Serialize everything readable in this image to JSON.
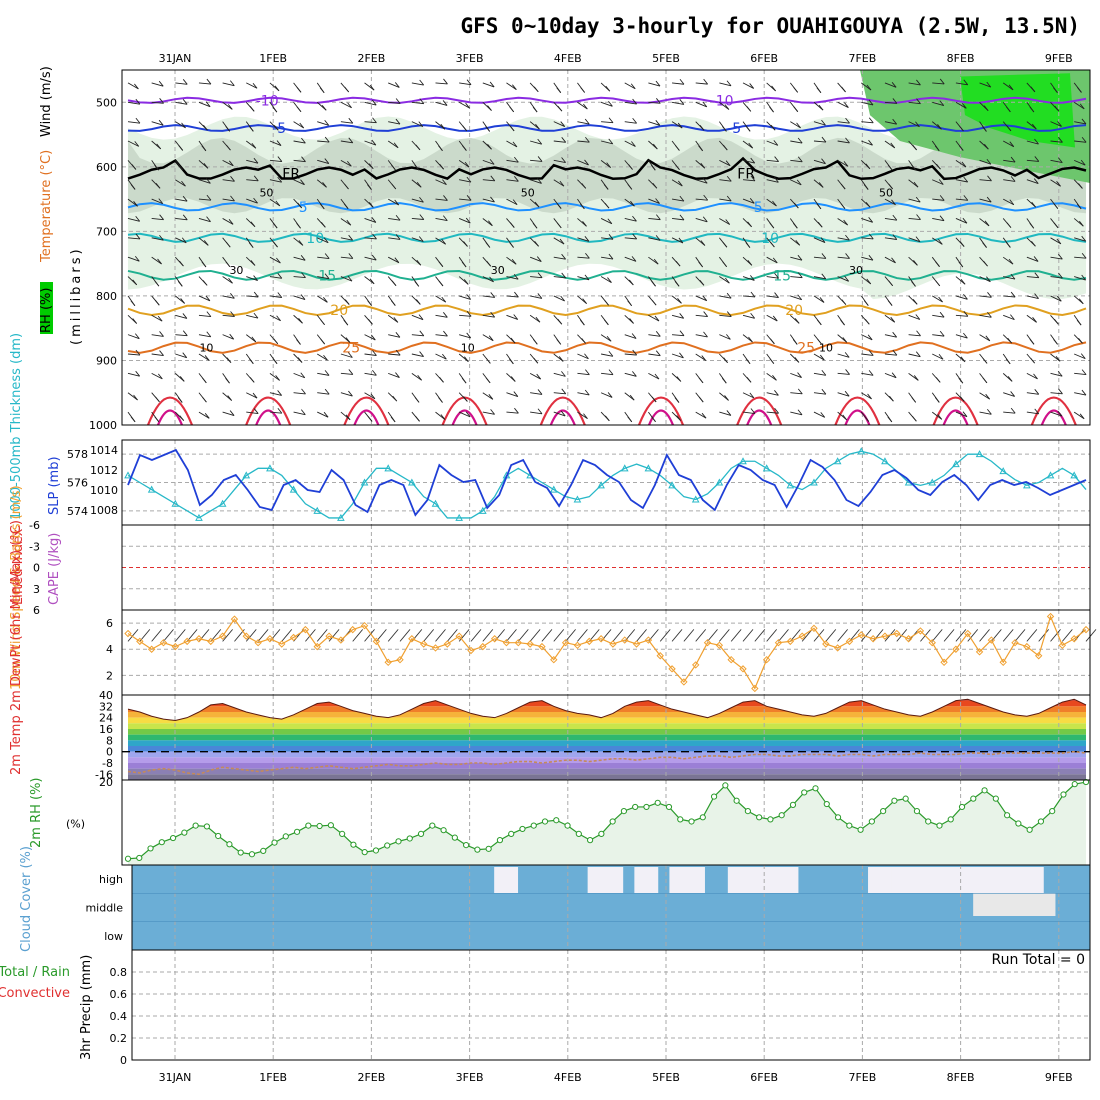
{
  "title": "GFS 0~10day 3-hourly for OUAHIGOUYA (2.5W, 13.5N)",
  "dates": [
    "31JAN",
    "1FEB",
    "2FEB",
    "3FEB",
    "4FEB",
    "5FEB",
    "6FEB",
    "7FEB",
    "8FEB",
    "9FEB"
  ],
  "colors": {
    "grid": "#aaaaaa",
    "rh_light": "#e4f2e4",
    "rh_mid": "#c7d6c7",
    "rh_green": "#6dc66d",
    "rh_bright": "#22dd22",
    "slp": "#1f3fd6",
    "thickness": "#27b8c8",
    "wind10": "#f0a030",
    "rh2m": "#2a9a2a",
    "rh2m_fill": "#e8f3e8",
    "cloud": "#6baed6",
    "cloud_clear": "#f2f0f7",
    "li_zero": "#e03030"
  },
  "chart_data": [
    {
      "panel": "upper-air",
      "type": "heatmap",
      "ylabel_parts": [
        "RH (%)",
        "Temperature (°C)",
        "Wind (m/s)"
      ],
      "ylabel_units": "(millibars)",
      "y_ticks": [
        500,
        600,
        700,
        800,
        900,
        1000
      ],
      "ylim": [
        450,
        1000
      ],
      "isotherms": [
        {
          "label": "-10",
          "pressure": 497
        },
        {
          "label": "-5",
          "pressure": 540
        },
        {
          "label": "FR",
          "pressure": 610
        },
        {
          "label": "5",
          "pressure": 662
        },
        {
          "label": "10",
          "pressure": 710
        },
        {
          "label": "15",
          "pressure": 768
        },
        {
          "label": "20",
          "pressure": 822
        },
        {
          "label": "25",
          "pressure": 880
        }
      ],
      "rh_labels": [
        "10",
        "30",
        "50"
      ]
    },
    {
      "panel": "slp-thickness",
      "type": "line",
      "ylabel_left": "1000-500mb Thickness (dm)",
      "ylabel_right": "SLP (mb)",
      "y_ticks_left": [
        574,
        576,
        578
      ],
      "y_ticks_right": [
        1008,
        1010,
        1012,
        1014
      ],
      "slp_values": [
        1010.5,
        1013.5,
        1013,
        1013.5,
        1014,
        1012,
        1008.5,
        1009.5,
        1011,
        1011.5,
        1010,
        1008.3,
        1008,
        1010.5,
        1011,
        1010,
        1009.8,
        1012,
        1011,
        1008.5,
        1007.8,
        1010.5,
        1011,
        1010.5,
        1007.5,
        1009,
        1012.5,
        1011.5,
        1010.8,
        1011,
        1008.2,
        1009.5,
        1012.5,
        1013,
        1010.8,
        1010.2,
        1008.4,
        1010.5,
        1013,
        1012.5,
        1011.5,
        1010.8,
        1009,
        1008.2,
        1010.5,
        1013.5,
        1011.5,
        1011,
        1009,
        1008,
        1010.5,
        1012.5,
        1012,
        1011,
        1010.5,
        1008.3,
        1010.5,
        1013,
        1012.3,
        1011,
        1009,
        1008.4,
        1009.8,
        1011.5,
        1012,
        1011.2,
        1010,
        1009.5,
        1010.8,
        1011.5,
        1010.5,
        1009,
        1010.5,
        1011,
        1010.5,
        1010.8,
        1010.2,
        1009.5,
        1010,
        1010.5,
        1011
      ],
      "thickness_values": [
        576.5,
        576,
        575.5,
        575,
        574.5,
        574,
        573.5,
        574,
        574.5,
        575.5,
        576.5,
        577,
        577,
        576.5,
        575.5,
        574.5,
        574,
        573.5,
        573.5,
        574.5,
        576,
        577,
        577,
        576.5,
        576,
        575,
        574.5,
        573.5,
        573.5,
        573.5,
        574,
        575,
        576.5,
        577,
        576.5,
        576,
        575.5,
        575,
        574.8,
        575,
        575.8,
        576.5,
        577,
        577.3,
        577,
        576.5,
        575.8,
        575,
        574.8,
        575.2,
        576,
        577,
        577.5,
        577.5,
        577,
        576.5,
        575.8,
        575.5,
        576,
        577,
        577.5,
        578,
        578.2,
        578,
        577.5,
        576.8,
        576,
        575.8,
        576,
        576.5,
        577.3,
        578,
        578,
        577.5,
        576.8,
        576.2,
        575.8,
        576,
        576.5,
        577,
        576.5,
        575.5
      ],
      "thickness_range": [
        573,
        579
      ],
      "slp_range": [
        1006.5,
        1015
      ]
    },
    {
      "panel": "li-cape",
      "type": "line",
      "ylabel_left": "Lifted Index",
      "ylabel_right": "CAPE (J/kg)",
      "y_ticks": [
        "-6",
        "-3",
        "0",
        "3",
        "6"
      ],
      "ylim": [
        -6,
        6
      ]
    },
    {
      "panel": "wind10m",
      "type": "line",
      "ylabel": "10m Wind Speed & Barbs (m/s)",
      "y_ticks": [
        2,
        4,
        6
      ],
      "ylim": [
        0.5,
        7
      ],
      "values": [
        5.2,
        4.6,
        4,
        4.5,
        4.2,
        4.6,
        4.8,
        4.6,
        5,
        6.3,
        5,
        4.5,
        4.8,
        4.4,
        4.9,
        5.5,
        4.2,
        5,
        4.7,
        5.5,
        5.8,
        4.6,
        3,
        3.2,
        4.8,
        4.4,
        4.1,
        4.4,
        5,
        3.9,
        4.2,
        4.8,
        4.5,
        4.5,
        4.4,
        4.2,
        3.2,
        4.5,
        4.3,
        4.6,
        4.8,
        4.4,
        4.7,
        4.4,
        4.7,
        3.5,
        2.5,
        1.5,
        2.8,
        4.5,
        4.3,
        3.2,
        2.5,
        1,
        3.2,
        4.5,
        4.6,
        5,
        5.6,
        4.4,
        4.1,
        4.6,
        5.1,
        4.8,
        5,
        5.2,
        4.8,
        5.4,
        4.5,
        3,
        4,
        5.2,
        3.8,
        4.7,
        3,
        4.5,
        4.2,
        3.5,
        6.5,
        4.3,
        4.8,
        5.5
      ]
    },
    {
      "panel": "temp2m",
      "type": "area",
      "ylabel": "2m Temp 2m DewPt (6hr Min/Max) (°C)",
      "y_ticks": [
        "-16",
        "-8",
        "0",
        "8",
        "16",
        "24",
        "32",
        "40"
      ],
      "ylim": [
        -20,
        40
      ],
      "temp_values": [
        30,
        28,
        25,
        23,
        22,
        24,
        28,
        33,
        34,
        31,
        28,
        26,
        24,
        23,
        26,
        30,
        34,
        35,
        32,
        29,
        27,
        25,
        24,
        26,
        30,
        34,
        36,
        33,
        30,
        27,
        25,
        24,
        27,
        31,
        35,
        36,
        32,
        29,
        27,
        26,
        24,
        27,
        32,
        35,
        36,
        33,
        30,
        28,
        26,
        24,
        27,
        31,
        35,
        36,
        32,
        30,
        28,
        26,
        25,
        27,
        31,
        35,
        36,
        33,
        30,
        28,
        26,
        25,
        28,
        32,
        36,
        37,
        34,
        31,
        28,
        26,
        25,
        27,
        31,
        35,
        37,
        33
      ],
      "dewpt_values": [
        -14,
        -15,
        -13,
        -12,
        -13,
        -15,
        -16,
        -13,
        -11,
        -12,
        -13,
        -14,
        -13,
        -12,
        -11,
        -12,
        -11,
        -10,
        -11,
        -12,
        -11,
        -10,
        -9,
        -10,
        -10,
        -9,
        -8,
        -9,
        -9,
        -8,
        -8,
        -9,
        -8,
        -7,
        -7,
        -8,
        -7,
        -6,
        -6,
        -7,
        -6,
        -5,
        -5,
        -6,
        -5,
        -4,
        -4,
        -5,
        -4,
        -3,
        -3,
        -4,
        -3,
        -2,
        -2,
        -3,
        -3,
        -2,
        -2,
        -2,
        -3,
        -2,
        -2,
        -3,
        -2,
        -2,
        -2,
        -1,
        -2,
        -2,
        -2,
        -1,
        -1,
        -2,
        -1,
        -1,
        -1,
        -1,
        -1,
        -1,
        0,
        -1
      ]
    },
    {
      "panel": "rh2m",
      "type": "area",
      "ylabel": "2m RH (%)",
      "y_ticks": [
        20
      ],
      "ylim": [
        0,
        20.5
      ],
      "values": [
        1.5,
        1.7,
        4,
        5.5,
        6.5,
        7.8,
        9.5,
        9.3,
        7,
        5,
        3,
        2.6,
        3.4,
        5.4,
        6.9,
        8,
        9.5,
        9.4,
        9.6,
        7.5,
        4.9,
        3.1,
        3.5,
        4.7,
        5.7,
        6.4,
        7.5,
        9.5,
        8.4,
        6.6,
        4.8,
        3.7,
        3.9,
        6,
        7.5,
        8.7,
        9.5,
        10.5,
        10.8,
        9.5,
        7.5,
        6,
        7.5,
        10.5,
        13,
        14,
        14,
        15,
        14,
        11,
        10.5,
        11.5,
        16.5,
        19.2,
        15.5,
        13,
        11.5,
        11,
        12,
        14.5,
        17.5,
        18.5,
        14.7,
        11.5,
        9.5,
        8.5,
        10.5,
        13,
        15.5,
        16,
        13,
        10.5,
        9.5,
        11,
        14,
        16,
        18,
        16,
        12,
        10,
        8.5,
        10.5,
        13,
        17,
        19.5,
        20
      ]
    },
    {
      "panel": "cloud",
      "type": "heatmap",
      "ylabel": "Cloud Cover (%)",
      "layers": [
        "high",
        "middle",
        "low"
      ],
      "high_clear": [
        0,
        0,
        0,
        0,
        0,
        0,
        0,
        0,
        0,
        0,
        0,
        0,
        0,
        0,
        0,
        0,
        0,
        0,
        0,
        0,
        0,
        0,
        0,
        0,
        0,
        0,
        0,
        0,
        0,
        0,
        0,
        1,
        1,
        0,
        0,
        0,
        0,
        0,
        0,
        1,
        1,
        1,
        0,
        1,
        1,
        0,
        1,
        1,
        1,
        0,
        0,
        1,
        1,
        1,
        1,
        1,
        1,
        0,
        0,
        0,
        0,
        0,
        0,
        1,
        1,
        1,
        1,
        1,
        1,
        1,
        1,
        1,
        1,
        1,
        1,
        1,
        1,
        1,
        0,
        0,
        0,
        0
      ],
      "mid_clear": [
        0,
        0,
        0,
        0,
        0,
        0,
        0,
        0,
        0,
        0,
        0,
        0,
        0,
        0,
        0,
        0,
        0,
        0,
        0,
        0,
        0,
        0,
        0,
        0,
        0,
        0,
        0,
        0,
        0,
        0,
        0,
        0,
        0,
        0,
        0,
        0,
        0,
        0,
        0,
        0,
        0,
        0,
        0,
        0,
        0,
        0,
        0,
        0,
        0,
        0,
        0,
        0,
        0,
        0,
        0,
        0,
        0,
        0,
        0,
        0,
        0,
        0,
        0,
        0,
        0,
        0,
        0,
        0,
        0,
        0,
        0,
        0,
        1,
        1,
        1,
        1,
        1,
        1,
        1,
        0,
        0,
        0
      ]
    },
    {
      "panel": "precip",
      "type": "bar",
      "ylabel_parts": [
        "Total / Rain",
        "Convective"
      ],
      "ylabel": "3hr Precip (mm)",
      "y_ticks": [
        "0",
        "0.2",
        "0.4",
        "0.6",
        "0.8"
      ],
      "ylim": [
        0,
        1
      ],
      "annotation": "Run Total = 0",
      "values": []
    }
  ]
}
